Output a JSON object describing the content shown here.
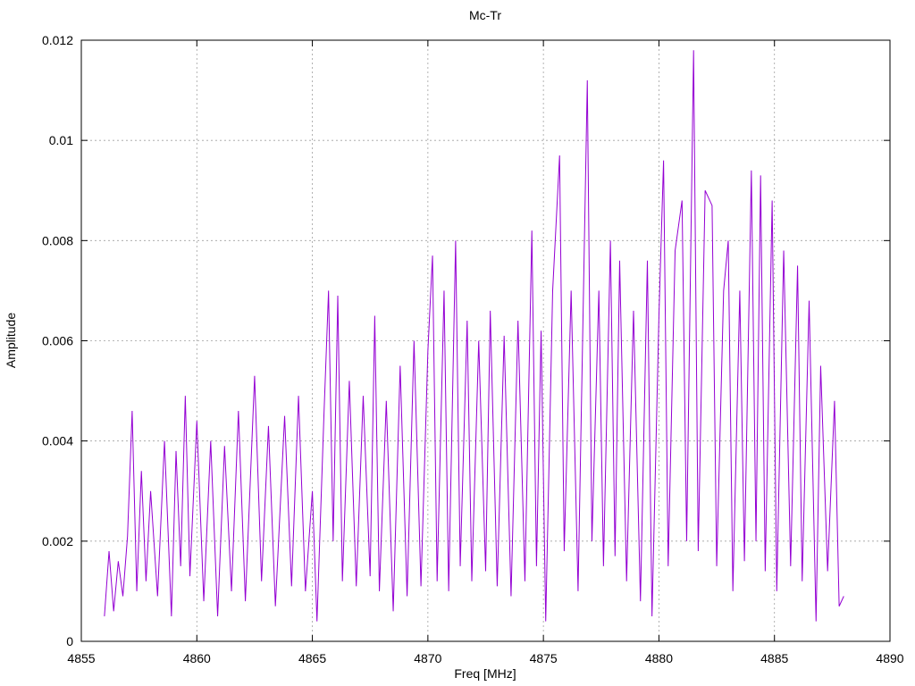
{
  "chart_data": {
    "type": "line",
    "title": "Mc-Tr",
    "x_label": "Freq [MHz]",
    "y_label": "Amplitude",
    "xlim": [
      4855,
      4890
    ],
    "xticks": [
      4855,
      4860,
      4865,
      4870,
      4875,
      4880,
      4885,
      4890
    ],
    "ylim": [
      0,
      0.012
    ],
    "yticks": [
      0,
      0.002,
      0.004,
      0.006,
      0.008,
      0.01,
      0.012
    ],
    "grid": true,
    "x": [
      4856.0,
      4856.2,
      4856.4,
      4856.6,
      4856.8,
      4857.0,
      4857.2,
      4857.4,
      4857.6,
      4857.8,
      4858.0,
      4858.3,
      4858.6,
      4858.9,
      4859.1,
      4859.3,
      4859.5,
      4859.7,
      4860.0,
      4860.3,
      4860.6,
      4860.9,
      4861.2,
      4861.5,
      4861.8,
      4862.1,
      4862.5,
      4862.8,
      4863.1,
      4863.4,
      4863.8,
      4864.1,
      4864.4,
      4864.7,
      4865.0,
      4865.2,
      4865.5,
      4865.7,
      4865.9,
      4866.1,
      4866.3,
      4866.6,
      4866.9,
      4867.2,
      4867.5,
      4867.7,
      4867.9,
      4868.2,
      4868.5,
      4868.8,
      4869.1,
      4869.4,
      4869.7,
      4870.0,
      4870.2,
      4870.4,
      4870.7,
      4870.9,
      4871.2,
      4871.4,
      4871.7,
      4871.9,
      4872.2,
      4872.5,
      4872.7,
      4873.0,
      4873.3,
      4873.6,
      4873.9,
      4874.2,
      4874.5,
      4874.7,
      4874.9,
      4875.1,
      4875.4,
      4875.7,
      4875.9,
      4876.2,
      4876.5,
      4876.9,
      4877.1,
      4877.4,
      4877.6,
      4877.9,
      4878.1,
      4878.3,
      4878.6,
      4878.9,
      4879.2,
      4879.5,
      4879.7,
      4880.0,
      4880.2,
      4880.4,
      4880.7,
      4881.0,
      4881.2,
      4881.5,
      4881.7,
      4882.0,
      4882.3,
      4882.5,
      4882.8,
      4883.0,
      4883.2,
      4883.5,
      4883.7,
      4884.0,
      4884.2,
      4884.4,
      4884.6,
      4884.9,
      4885.1,
      4885.4,
      4885.7,
      4886.0,
      4886.2,
      4886.5,
      4886.8,
      4887.0,
      4887.3,
      4887.6,
      4887.8,
      4888.0
    ],
    "series": [
      {
        "color": "#9400d3",
        "values": [
          0.0005,
          0.0018,
          0.0006,
          0.0016,
          0.0009,
          0.0021,
          0.0046,
          0.001,
          0.0034,
          0.0012,
          0.003,
          0.0009,
          0.004,
          0.0005,
          0.0038,
          0.0015,
          0.0049,
          0.0013,
          0.0044,
          0.0008,
          0.004,
          0.0005,
          0.0039,
          0.001,
          0.0046,
          0.0008,
          0.0053,
          0.0012,
          0.0043,
          0.0007,
          0.0045,
          0.0011,
          0.0049,
          0.001,
          0.003,
          0.0004,
          0.0045,
          0.007,
          0.002,
          0.0069,
          0.0012,
          0.0052,
          0.0011,
          0.0049,
          0.0013,
          0.0065,
          0.001,
          0.0048,
          0.0006,
          0.0055,
          0.0009,
          0.006,
          0.0011,
          0.0058,
          0.0077,
          0.0012,
          0.007,
          0.001,
          0.008,
          0.0015,
          0.0064,
          0.0012,
          0.006,
          0.0014,
          0.0066,
          0.0011,
          0.0061,
          0.0009,
          0.0064,
          0.0012,
          0.0082,
          0.0015,
          0.0062,
          0.0004,
          0.007,
          0.0097,
          0.0018,
          0.007,
          0.001,
          0.0112,
          0.002,
          0.007,
          0.0015,
          0.008,
          0.0017,
          0.0076,
          0.0012,
          0.0066,
          0.0008,
          0.0076,
          0.0005,
          0.0065,
          0.0096,
          0.0015,
          0.0078,
          0.0088,
          0.002,
          0.0118,
          0.0018,
          0.009,
          0.0087,
          0.0015,
          0.007,
          0.008,
          0.001,
          0.007,
          0.0016,
          0.0094,
          0.002,
          0.0093,
          0.0014,
          0.0088,
          0.001,
          0.0078,
          0.0015,
          0.0075,
          0.0012,
          0.0068,
          0.0004,
          0.0055,
          0.0014,
          0.0048,
          0.0007,
          0.0009
        ]
      }
    ]
  }
}
